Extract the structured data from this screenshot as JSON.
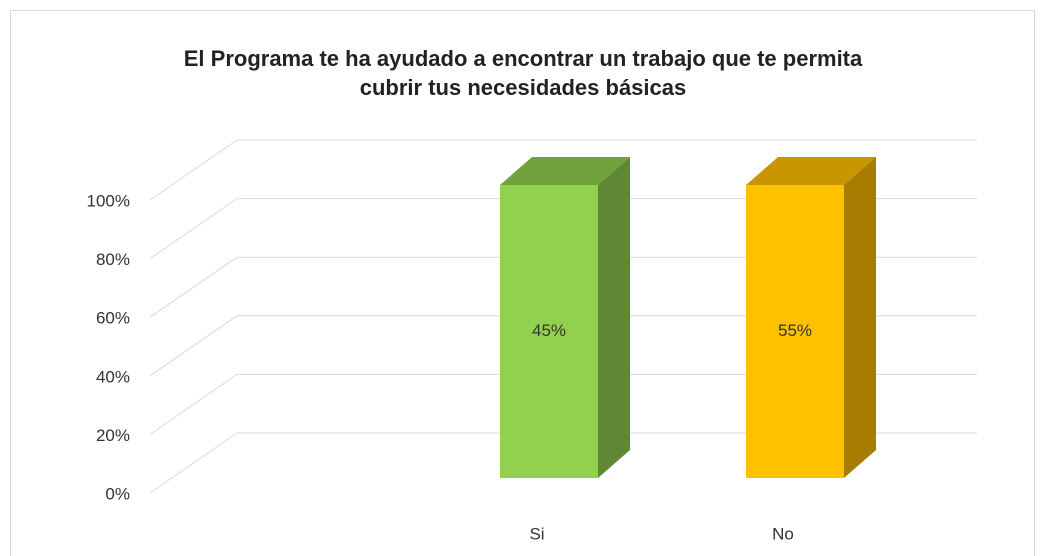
{
  "chart_data": {
    "type": "bar",
    "title": "El Programa te ha ayudado  a encontrar un trabajo que te permita\ncubrir tus necesidades básicas",
    "stacking": "percent",
    "categories": [
      "Si",
      "No"
    ],
    "series": [
      {
        "name": "Si",
        "color": "#92d050",
        "values": [
          45,
          null
        ]
      },
      {
        "name": "No",
        "color": "#ffc000",
        "values": [
          null,
          55
        ]
      }
    ],
    "value_labels": [
      [
        "45%",
        null
      ],
      [
        null,
        "55%"
      ]
    ],
    "ylim": [
      0,
      100
    ],
    "yticks": [
      {
        "value": 0,
        "label": "0%"
      },
      {
        "value": 20,
        "label": "20%"
      },
      {
        "value": 40,
        "label": "40%"
      },
      {
        "value": 60,
        "label": "60%"
      },
      {
        "value": 80,
        "label": "80%"
      },
      {
        "value": 100,
        "label": "100%"
      }
    ],
    "grid": true
  }
}
